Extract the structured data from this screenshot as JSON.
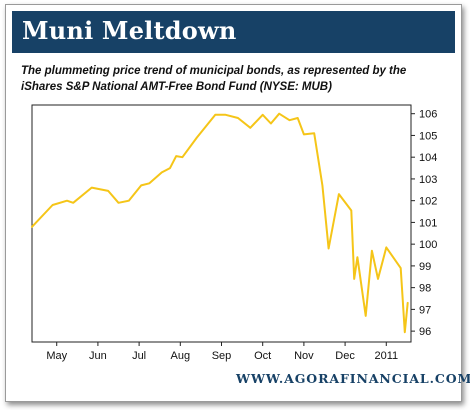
{
  "header": {
    "title": "Muni Meltdown"
  },
  "subtitle": "The plummeting price trend of municipal bonds, as represented by the iShares S&P National AMT-Free Bond Fund (NYSE: MUB)",
  "footer": {
    "url": "WWW.AGORAFINANCIAL.COM"
  },
  "colors": {
    "header_bg": "#174166",
    "line": "#F5C518",
    "axis": "#222222",
    "footer_text": "#174166"
  },
  "chart_data": {
    "type": "line",
    "title": "",
    "xlabel": "",
    "ylabel": "",
    "x_tick_labels": [
      "May",
      "Jun",
      "Jul",
      "Aug",
      "Sep",
      "Oct",
      "Nov",
      "Dec",
      "2011"
    ],
    "x_tick_positions": [
      0.6,
      1.6,
      2.6,
      3.6,
      4.6,
      5.6,
      6.6,
      7.6,
      8.6
    ],
    "xlim": [
      0,
      9.2
    ],
    "ylim": [
      95.5,
      106.4
    ],
    "y_ticks": [
      96,
      97,
      98,
      99,
      100,
      101,
      102,
      103,
      104,
      105,
      106
    ],
    "y_axis_side": "right",
    "grid": false,
    "legend": "none",
    "series": [
      {
        "name": "",
        "x": [
          0.0,
          0.5,
          0.85,
          1.0,
          1.45,
          1.85,
          2.1,
          2.35,
          2.65,
          2.85,
          3.15,
          3.35,
          3.5,
          3.65,
          4.0,
          4.45,
          4.7,
          5.0,
          5.3,
          5.6,
          5.8,
          6.0,
          6.25,
          6.45,
          6.6,
          6.85,
          7.05,
          7.2,
          7.45,
          7.75,
          7.82,
          7.9,
          8.1,
          8.25,
          8.4,
          8.6,
          8.95,
          9.05,
          9.12
        ],
        "y": [
          100.8,
          101.8,
          102.0,
          101.9,
          102.6,
          102.45,
          101.9,
          102.0,
          102.7,
          102.8,
          103.3,
          103.5,
          104.05,
          104.0,
          104.9,
          105.95,
          105.95,
          105.8,
          105.35,
          105.95,
          105.55,
          106.0,
          105.7,
          105.8,
          105.05,
          105.1,
          102.7,
          99.8,
          102.3,
          101.55,
          98.4,
          99.4,
          96.7,
          99.7,
          98.4,
          99.85,
          98.9,
          95.95,
          97.3
        ]
      }
    ]
  }
}
